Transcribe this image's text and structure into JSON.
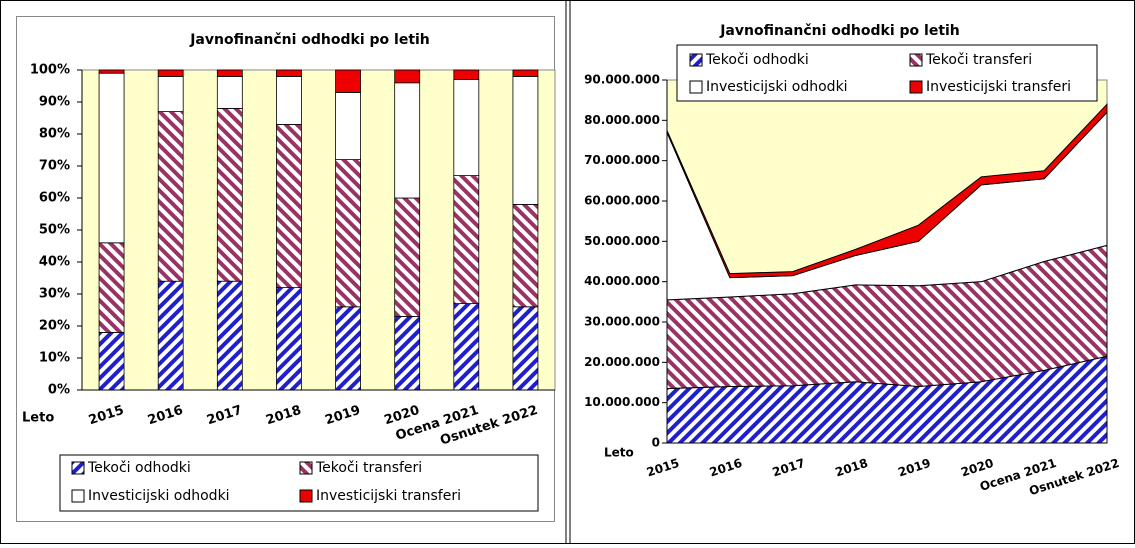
{
  "chart_data": [
    {
      "type": "bar",
      "stacked": true,
      "title": "Javnofinančni odhodki po letih",
      "xlabel": "Leto",
      "categories": [
        "2015",
        "2016",
        "2017",
        "2018",
        "2019",
        "2020",
        "Ocena 2021",
        "Osnutek 2022"
      ],
      "series": [
        {
          "name": "Tekoči odhodki",
          "color": "#1f1fcc",
          "hatch": true,
          "values": [
            18,
            34,
            34,
            32,
            26,
            23,
            27,
            26
          ]
        },
        {
          "name": "Tekoči transferi",
          "color": "#993366",
          "hatch": true,
          "values": [
            28,
            53,
            54,
            51,
            46,
            37,
            40,
            32
          ]
        },
        {
          "name": "Investicijski odhodki",
          "color": "#ffffff",
          "hatch": false,
          "values": [
            53,
            11,
            10,
            15,
            21,
            36,
            30,
            40
          ]
        },
        {
          "name": "Investicijski transferi",
          "color": "#ee0000",
          "hatch": false,
          "values": [
            1,
            2,
            2,
            2,
            7,
            4,
            3,
            2
          ]
        }
      ],
      "ylim": [
        0,
        100
      ],
      "yticks": [
        {
          "value": 0,
          "label": "0%"
        },
        {
          "value": 10,
          "label": "10%"
        },
        {
          "value": 20,
          "label": "20%"
        },
        {
          "value": 30,
          "label": "30%"
        },
        {
          "value": 40,
          "label": "40%"
        },
        {
          "value": 50,
          "label": "50%"
        },
        {
          "value": 60,
          "label": "60%"
        },
        {
          "value": 70,
          "label": "70%"
        },
        {
          "value": 80,
          "label": "80%"
        },
        {
          "value": 90,
          "label": "90%"
        },
        {
          "value": 100,
          "label": "100%"
        }
      ],
      "plot_background": "#ffffcc"
    },
    {
      "type": "area",
      "stacked": true,
      "title": "Javnofinančni odhodki po letih",
      "xlabel": "Leto",
      "categories": [
        "2015",
        "2016",
        "2017",
        "2018",
        "2019",
        "2020",
        "Ocena 2021",
        "Osnutek 2022"
      ],
      "series": [
        {
          "name": "Tekoči odhodki",
          "color": "#1f1fcc",
          "hatch": true,
          "values": [
            13500000,
            14000000,
            14200000,
            15200000,
            14000000,
            15200000,
            18000000,
            21500000
          ]
        },
        {
          "name": "Tekoči transferi",
          "color": "#993366",
          "hatch": true,
          "values": [
            22000000,
            22200000,
            22800000,
            24000000,
            25000000,
            24800000,
            27000000,
            27500000
          ]
        },
        {
          "name": "Investicijski odhodki",
          "color": "#ffffff",
          "hatch": false,
          "values": [
            41500000,
            4800000,
            4500000,
            7300000,
            11000000,
            24000000,
            20500000,
            33000000
          ]
        },
        {
          "name": "Investicijski transferi",
          "color": "#ee0000",
          "hatch": false,
          "values": [
            500000,
            1000000,
            1000000,
            1500000,
            4000000,
            2000000,
            2000000,
            2000000
          ]
        }
      ],
      "ylim": [
        0,
        90000000
      ],
      "yticks": [
        0,
        {
          "value": 10000000,
          "label": "10.000.000"
        },
        {
          "value": 20000000,
          "label": "20.000.000"
        },
        {
          "value": 30000000,
          "label": "30.000.000"
        },
        {
          "value": 40000000,
          "label": "40.000.000"
        },
        {
          "value": 50000000,
          "label": "50.000.000"
        },
        {
          "value": 60000000,
          "label": "60.000.000"
        },
        {
          "value": 70000000,
          "label": "70.000.000"
        },
        {
          "value": 80000000,
          "label": "80.000.000"
        },
        {
          "value": 90000000,
          "label": "90.000.000"
        }
      ],
      "plot_background": "#ffffcc"
    }
  ]
}
